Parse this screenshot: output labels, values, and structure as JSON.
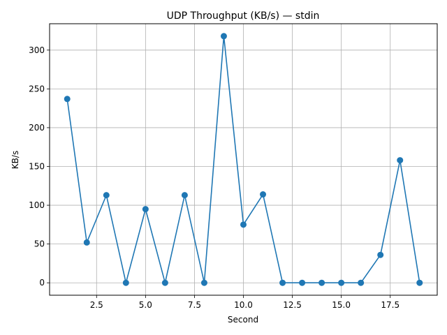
{
  "chart_data": {
    "type": "line",
    "title": "UDP Throughput (KB/s) — stdin",
    "xlabel": "Second",
    "ylabel": "KB/s",
    "xlim": [
      0.1,
      19.9
    ],
    "ylim": [
      -16,
      334
    ],
    "xticks": [
      2.5,
      5.0,
      7.5,
      10.0,
      12.5,
      15.0,
      17.5
    ],
    "xtick_labels": [
      "2.5",
      "5.0",
      "7.5",
      "10.0",
      "12.5",
      "15.0",
      "17.5"
    ],
    "yticks": [
      0,
      50,
      100,
      150,
      200,
      250,
      300
    ],
    "ytick_labels": [
      "0",
      "50",
      "100",
      "150",
      "200",
      "250",
      "300"
    ],
    "grid": true,
    "color": "#1f77b4",
    "marker": "circle",
    "series": [
      {
        "x": [
          1,
          2,
          3,
          4,
          5,
          6,
          7,
          8,
          9,
          10,
          11,
          12,
          13,
          14,
          15,
          16,
          17,
          18,
          19
        ],
        "values": [
          237,
          52,
          113,
          0,
          95,
          0,
          113,
          0,
          318,
          75,
          114,
          0,
          0,
          0,
          0,
          0,
          36,
          158,
          0
        ]
      }
    ]
  }
}
